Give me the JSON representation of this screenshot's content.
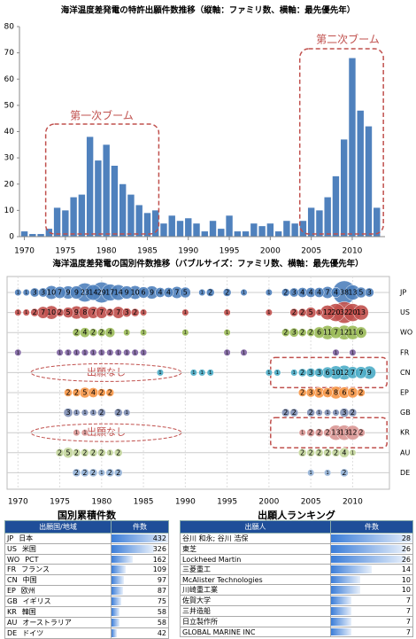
{
  "chart_data": [
    {
      "type": "bar",
      "title": "海洋温度差発電の特許出願件数推移（縦軸：ファミリ数、横軸：最先優先年）",
      "x": [
        1970,
        1971,
        1972,
        1973,
        1974,
        1975,
        1976,
        1977,
        1978,
        1979,
        1980,
        1981,
        1982,
        1983,
        1984,
        1985,
        1986,
        1987,
        1988,
        1989,
        1990,
        1991,
        1992,
        1993,
        1994,
        1995,
        1996,
        1997,
        1998,
        1999,
        2000,
        2001,
        2002,
        2003,
        2004,
        2005,
        2006,
        2007,
        2008,
        2009,
        2010,
        2011,
        2012,
        2013
      ],
      "values": [
        2,
        1,
        1,
        3,
        11,
        10,
        15,
        16,
        38,
        29,
        35,
        27,
        20,
        16,
        12,
        9,
        10,
        5,
        8,
        6,
        7,
        5,
        2,
        6,
        3,
        8,
        2,
        2,
        5,
        4,
        5,
        2,
        6,
        5,
        6,
        11,
        10,
        15,
        23,
        37,
        68,
        48,
        42,
        11
      ],
      "color": "#4f81bd",
      "xlim": [
        1969.4,
        2014
      ],
      "xticks": [
        1970,
        1975,
        1980,
        1985,
        1990,
        1995,
        2000,
        2005,
        2010
      ],
      "ylim": [
        0,
        80
      ],
      "yticks": [
        0,
        10,
        20,
        30,
        40,
        50,
        60,
        70,
        80
      ],
      "annotations": [
        "第一次ブーム",
        "第二次ブーム"
      ]
    },
    {
      "type": "bubble",
      "title": "海洋温度差発電の国別件数推移（バブルサイズ：ファミリ数、横軸：最先優先年）",
      "xlim": [
        1968.7,
        2014.4
      ],
      "xticks": [
        1970,
        1975,
        1980,
        1985,
        1990,
        1995,
        2000,
        2005,
        2010
      ],
      "annotations": [
        "出願なし",
        "出願なし"
      ],
      "series": [
        {
          "name": "JP",
          "color": "#4f81bd",
          "x": [
            1970,
            1971,
            1972,
            1973,
            1974,
            1975,
            1976,
            1977,
            1978,
            1979,
            1980,
            1981,
            1982,
            1983,
            1984,
            1985,
            1986,
            1987,
            1988,
            1989,
            1990,
            1992,
            1993,
            1995,
            1997,
            2000,
            2002,
            2003,
            2004,
            2005,
            2006,
            2007,
            2008,
            2009,
            2010,
            2011,
            2012
          ],
          "values": [
            1,
            1,
            3,
            3,
            10,
            7,
            9,
            9,
            23,
            14,
            29,
            17,
            14,
            9,
            10,
            6,
            9,
            4,
            4,
            7,
            5,
            1,
            2,
            2,
            1,
            1,
            2,
            3,
            4,
            4,
            4,
            7,
            4,
            38,
            13,
            5,
            3
          ]
        },
        {
          "name": "US",
          "color": "#c0504d",
          "x": [
            1970,
            1971,
            1972,
            1973,
            1974,
            1975,
            1976,
            1977,
            1978,
            1979,
            1980,
            1981,
            1982,
            1983,
            1984,
            1985,
            1990,
            1995,
            2000,
            2003,
            2004,
            2005,
            2006,
            2007,
            2008,
            2009,
            2010,
            2011
          ],
          "values": [
            1,
            1,
            2,
            7,
            10,
            2,
            5,
            9,
            8,
            7,
            7,
            2,
            7,
            3,
            2,
            1,
            1,
            1,
            1,
            2,
            2,
            5,
            1,
            12,
            20,
            32,
            20,
            13
          ]
        },
        {
          "name": "WO",
          "color": "#9bbb59",
          "x": [
            1977,
            1978,
            1979,
            1980,
            1981,
            1983,
            1985,
            1990,
            1995,
            2002,
            2003,
            2004,
            2005,
            2006,
            2007,
            2008,
            2009,
            2010,
            2011
          ],
          "values": [
            2,
            4,
            2,
            2,
            4,
            1,
            1,
            1,
            1,
            2,
            3,
            2,
            2,
            6,
            11,
            7,
            12,
            11,
            6
          ]
        },
        {
          "name": "FR",
          "color": "#8064a2",
          "x": [
            1970,
            1975,
            1976,
            1977,
            1978,
            1979,
            1980,
            1981,
            1982,
            1983,
            1984,
            1985,
            1995,
            1997,
            2008,
            2010
          ],
          "values": [
            1,
            1,
            1,
            1,
            1,
            1,
            1,
            1,
            1,
            1,
            1,
            1,
            1,
            1,
            1,
            1
          ]
        },
        {
          "name": "CN",
          "color": "#4bacc6",
          "x": [
            1987,
            1991,
            1992,
            1993,
            2000,
            2001,
            2003,
            2004,
            2005,
            2006,
            2007,
            2008,
            2009,
            2010,
            2011,
            2012
          ],
          "values": [
            1,
            1,
            1,
            1,
            1,
            1,
            1,
            2,
            3,
            3,
            6,
            10,
            12,
            7,
            7,
            9
          ]
        },
        {
          "name": "EP",
          "color": "#f79646",
          "x": [
            1976,
            1977,
            1978,
            1979,
            1980,
            1981,
            2004,
            2005,
            2006,
            2007,
            2008,
            2009,
            2010,
            2011
          ],
          "values": [
            2,
            2,
            5,
            4,
            2,
            2,
            2,
            3,
            5,
            4,
            8,
            6,
            5,
            2
          ]
        },
        {
          "name": "GB",
          "color": "#7f8fb5",
          "x": [
            1976,
            1977,
            1978,
            1979,
            1980,
            1982,
            1983,
            2002,
            2003,
            2005,
            2006,
            2007,
            2008,
            2009,
            2010
          ],
          "values": [
            3,
            1,
            1,
            1,
            2,
            2,
            1,
            2,
            2,
            2,
            1,
            1,
            1,
            3,
            2
          ]
        },
        {
          "name": "KR",
          "color": "#d99694",
          "x": [
            1977,
            1978,
            2004,
            2005,
            2006,
            2007,
            2008,
            2009,
            2010,
            2011
          ],
          "values": [
            1,
            1,
            1,
            2,
            2,
            2,
            13,
            13,
            12,
            2
          ]
        },
        {
          "name": "AU",
          "color": "#c3d69b",
          "x": [
            1975,
            1976,
            1977,
            1978,
            1979,
            1980,
            1981,
            1982,
            2004,
            2005,
            2006,
            2007,
            2008,
            2009,
            2010
          ],
          "values": [
            2,
            5,
            2,
            2,
            2,
            2,
            1,
            2,
            2,
            2,
            2,
            2,
            2,
            4,
            1
          ]
        },
        {
          "name": "DE",
          "color": "#95b3d7",
          "x": [
            1977,
            1978,
            1979,
            1980,
            1981,
            1982,
            2005,
            2007,
            2009
          ],
          "values": [
            2,
            2,
            2,
            1,
            2,
            2,
            1,
            1,
            2
          ]
        }
      ]
    }
  ],
  "tables": [
    {
      "title": "国別累積件数",
      "header": [
        "出願国/地域",
        "件数"
      ],
      "rows": [
        [
          "JP",
          "日本",
          432
        ],
        [
          "US",
          "米国",
          326
        ],
        [
          "WO",
          "PCT",
          162
        ],
        [
          "FR",
          "フランス",
          109
        ],
        [
          "CN",
          "中国",
          97
        ],
        [
          "EP",
          "欧州",
          87
        ],
        [
          "GB",
          "イギリス",
          75
        ],
        [
          "KR",
          "韓国",
          58
        ],
        [
          "AU",
          "オーストラリア",
          58
        ],
        [
          "DE",
          "ドイツ",
          42
        ]
      ]
    },
    {
      "title": "出願人ランキング",
      "header": [
        "出願人",
        "件数"
      ],
      "rows": [
        [
          "谷川 和永; 谷川 浩保",
          28
        ],
        [
          "東芝",
          26
        ],
        [
          "Lockheed Martin",
          26
        ],
        [
          "三菱重工",
          14
        ],
        [
          "McAlister Technologies",
          10
        ],
        [
          "川崎重工業",
          10
        ],
        [
          "佐賀大学",
          7
        ],
        [
          "三井造船",
          7
        ],
        [
          "日立製作所",
          7
        ],
        [
          "GLOBAL MARINE INC",
          7
        ]
      ]
    }
  ]
}
